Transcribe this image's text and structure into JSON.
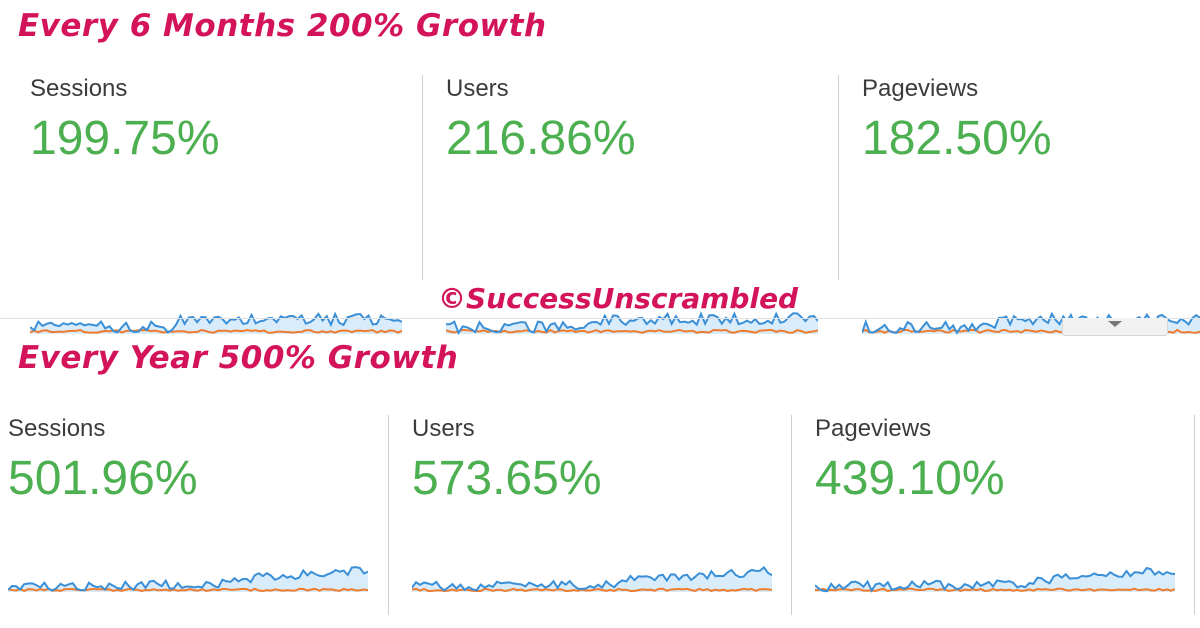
{
  "headlines": {
    "six_months": "Every 6 Months 200% Growth",
    "yearly": "Every Year 500% Growth"
  },
  "watermark": "©SuccessUnscrambled",
  "colors": {
    "headline": "#d4145a",
    "metric_value": "#4caf50",
    "current_series": "#3a8fd6",
    "previous_series": "#ef7b2d",
    "fill": "#d9ecfb"
  },
  "panels": {
    "six_months": {
      "sessions": {
        "label": "Sessions",
        "value": "199.75%"
      },
      "users": {
        "label": "Users",
        "value": "216.86%"
      },
      "pageviews": {
        "label": "Pageviews",
        "value": "182.50%"
      }
    },
    "yearly": {
      "sessions": {
        "label": "Sessions",
        "value": "501.96%"
      },
      "users": {
        "label": "Users",
        "value": "573.65%"
      },
      "pageviews": {
        "label": "Pageviews",
        "value": "439.10%"
      }
    }
  }
}
